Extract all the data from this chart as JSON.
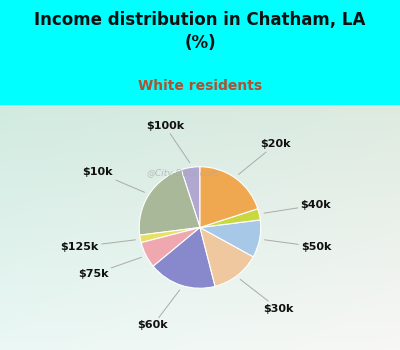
{
  "title": "Income distribution in Chatham, LA\n(%)",
  "subtitle": "White residents",
  "title_color": "#111111",
  "subtitle_color": "#b05030",
  "background_top": "#00FFFF",
  "labels": [
    "$100k",
    "$10k",
    "$125k",
    "$75k",
    "$60k",
    "$30k",
    "$50k",
    "$40k",
    "$20k"
  ],
  "sizes": [
    5,
    22,
    2,
    7,
    18,
    13,
    10,
    3,
    20
  ],
  "colors": [
    "#b0a8d0",
    "#a8b898",
    "#e8e060",
    "#f0a8b0",
    "#8888cc",
    "#f0c8a0",
    "#a8c8e8",
    "#c8d840",
    "#f0a850"
  ],
  "startangle": 90,
  "label_fontsize": 8,
  "watermark": "@City-Data.com"
}
